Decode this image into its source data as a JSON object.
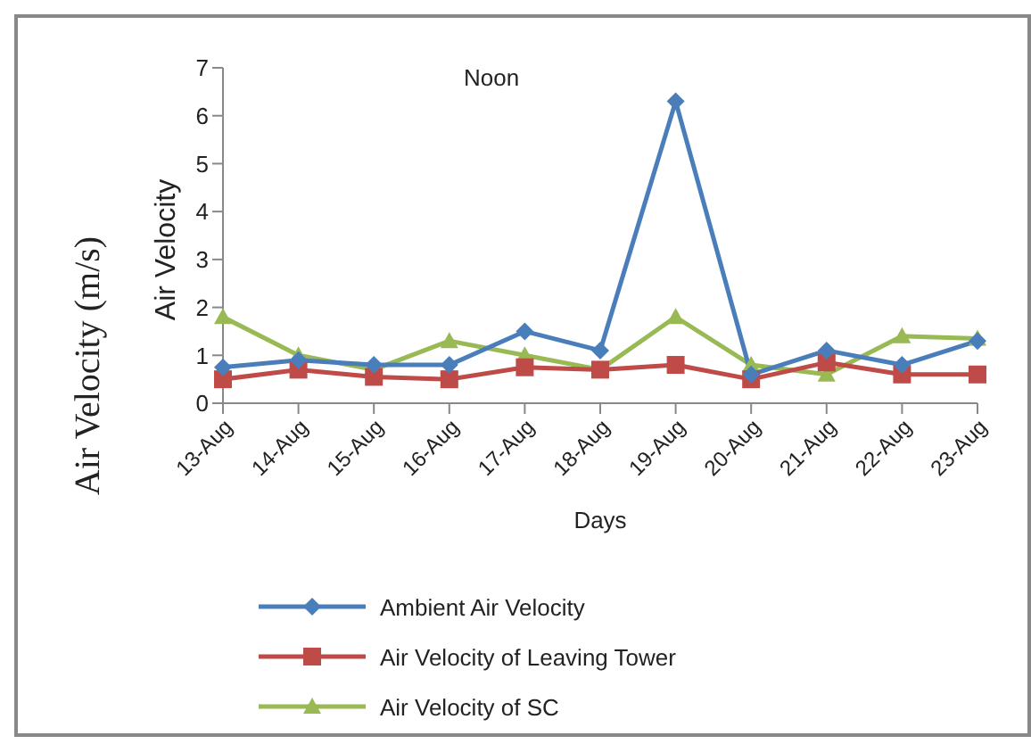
{
  "chart_data": {
    "type": "line",
    "title": "Noon",
    "xlabel": "Days",
    "ylabel": "Air Velocity (m/s)",
    "annotations": [
      "Air Velocity"
    ],
    "categories": [
      "13-Aug",
      "14-Aug",
      "15-Aug",
      "16-Aug",
      "17-Aug",
      "18-Aug",
      "19-Aug",
      "20-Aug",
      "21-Aug",
      "22-Aug",
      "23-Aug"
    ],
    "series": [
      {
        "name": "Ambient Air Velocity",
        "color": "#4a7ebb",
        "marker": "diamond",
        "values": [
          0.75,
          0.9,
          0.8,
          0.8,
          1.5,
          1.1,
          6.3,
          0.6,
          1.1,
          0.8,
          1.3
        ]
      },
      {
        "name": "Air Velocity of Leaving Tower",
        "color": "#be4b48",
        "marker": "square",
        "values": [
          0.5,
          0.7,
          0.55,
          0.5,
          0.75,
          0.7,
          0.8,
          0.5,
          0.85,
          0.6,
          0.6
        ]
      },
      {
        "name": "Air Velocity of SC",
        "color": "#98b954",
        "marker": "triangle",
        "values": [
          1.8,
          1.0,
          0.7,
          1.3,
          1.0,
          0.7,
          1.8,
          0.8,
          0.6,
          1.4,
          1.35
        ]
      }
    ],
    "ylim": [
      0,
      7
    ],
    "yticks": [
      0,
      1,
      2,
      3,
      4,
      5,
      6,
      7
    ],
    "grid": false,
    "legend": "bottom",
    "line_style": "solid"
  }
}
